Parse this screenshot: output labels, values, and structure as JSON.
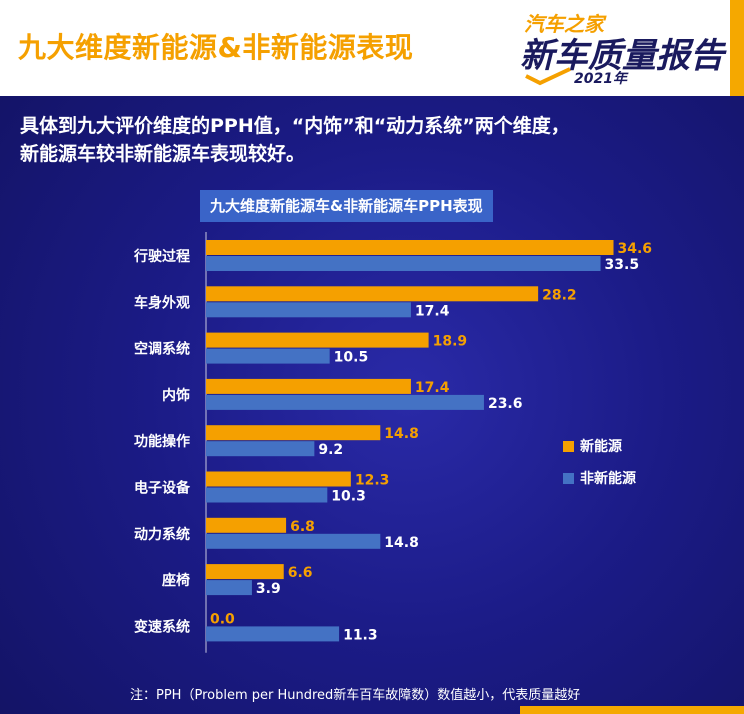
{
  "header": {
    "title": "九大维度新能源&非新能源表现",
    "logo_small": "汽车之家",
    "logo_main": "新车质量报告",
    "logo_year": "2021年"
  },
  "intro": {
    "line1": "具体到九大评价维度的PPH值，“内饰”和“动力系统”两个维度，",
    "line2": "新能源车较非新能源车表现较好。"
  },
  "footnote": "注：PPH（Problem per Hundred新车百车故障数）数值越小，代表质量越好",
  "colors": {
    "new_energy": "#f5a000",
    "non_new_energy": "#4472c4",
    "accent": "#f5a800"
  },
  "chart_data": {
    "type": "bar",
    "orientation": "horizontal",
    "title": "九大维度新能源车&非新能源车PPH表现",
    "categories": [
      "行驶过程",
      "车身外观",
      "空调系统",
      "内饰",
      "功能操作",
      "电子设备",
      "动力系统",
      "座椅",
      "变速系统"
    ],
    "series": [
      {
        "name": "新能源",
        "color": "#f5a000",
        "values": [
          34.6,
          28.2,
          18.9,
          17.4,
          14.8,
          12.3,
          6.8,
          6.6,
          0.0
        ]
      },
      {
        "name": "非新能源",
        "color": "#4472c4",
        "values": [
          33.5,
          17.4,
          10.5,
          23.6,
          9.2,
          10.3,
          14.8,
          3.9,
          11.3
        ]
      }
    ],
    "value_labels": {
      "new_energy": [
        "34.6",
        "28.2",
        "18.9",
        "17.4",
        "14.8",
        "12.3",
        "6.8",
        "6.6",
        "0.0"
      ],
      "non_new_energy": [
        "33.5",
        "17.4",
        "10.5",
        "23.6",
        "9.2",
        "10.3",
        "14.8",
        "3.9",
        "11.3"
      ]
    },
    "xlim": [
      0,
      36
    ],
    "grid": false,
    "legend_position": "right"
  }
}
